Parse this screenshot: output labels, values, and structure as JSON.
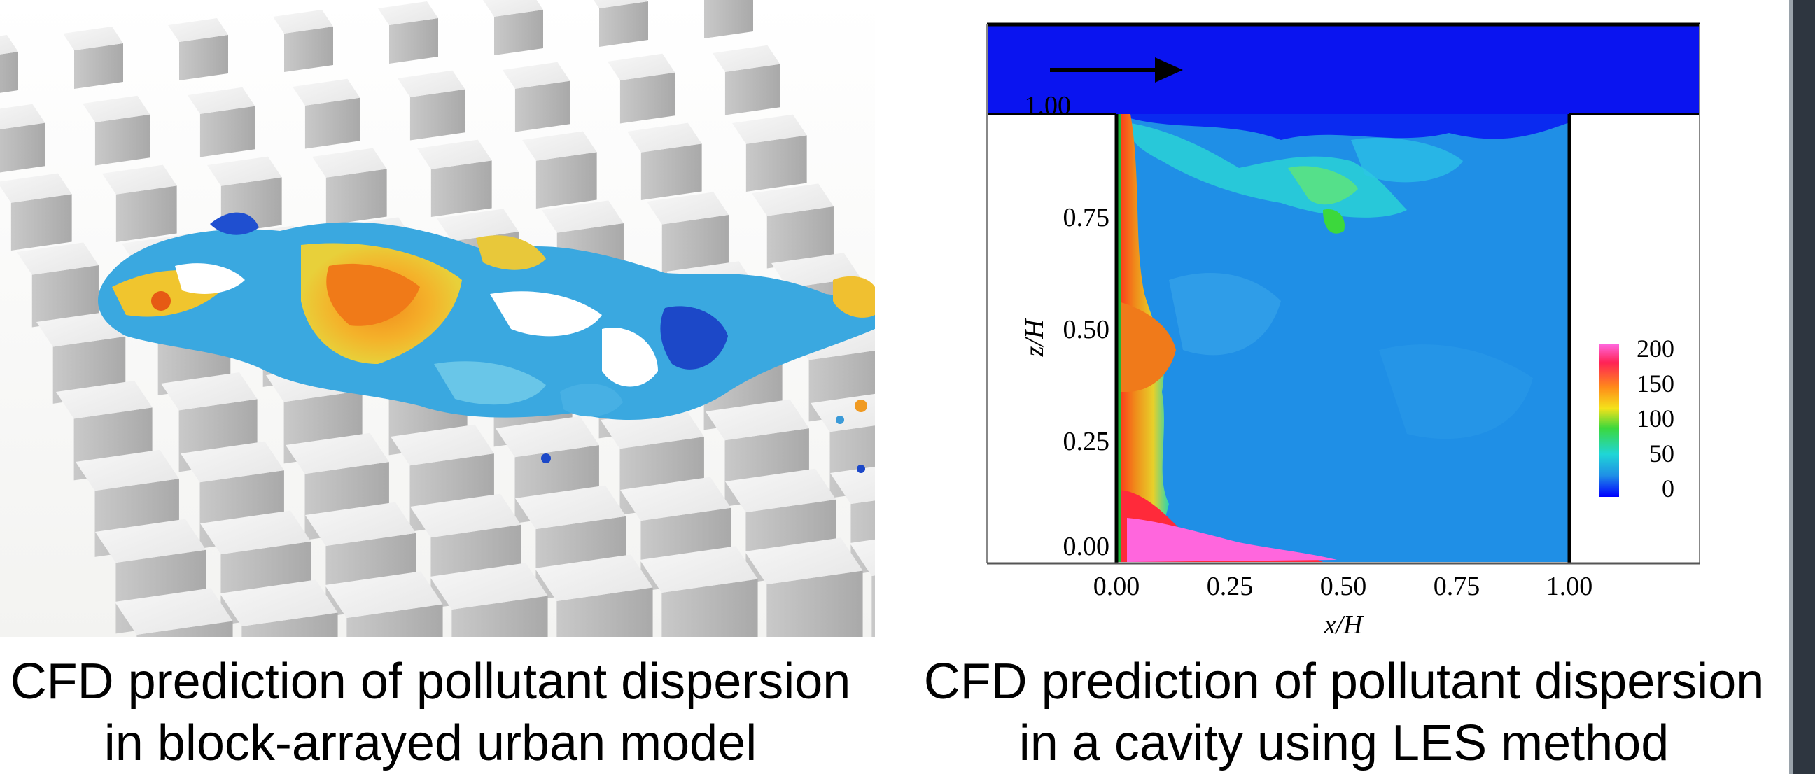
{
  "left_figure": {
    "caption_line1": "CFD prediction of pollutant dispersion",
    "caption_line2": "in block-arrayed urban model"
  },
  "right_figure": {
    "caption_line1": "CFD prediction of pollutant dispersion",
    "caption_line2": "in a cavity using LES method",
    "x_axis_label": "x/H",
    "y_axis_label": "z/H",
    "x_ticks": [
      "0.00",
      "0.25",
      "0.50",
      "0.75",
      "1.00"
    ],
    "y_ticks": [
      "0.00",
      "0.25",
      "0.50",
      "0.75",
      "1.00"
    ],
    "colorbar_ticks": [
      "200",
      "150",
      "100",
      "50",
      "0"
    ],
    "colors": {
      "freestream": "#0a14f0",
      "cavity_base": "#1f8fe6",
      "colorbar_top": "#ff66dd",
      "colorbar_bottom": "#0000ff"
    }
  }
}
